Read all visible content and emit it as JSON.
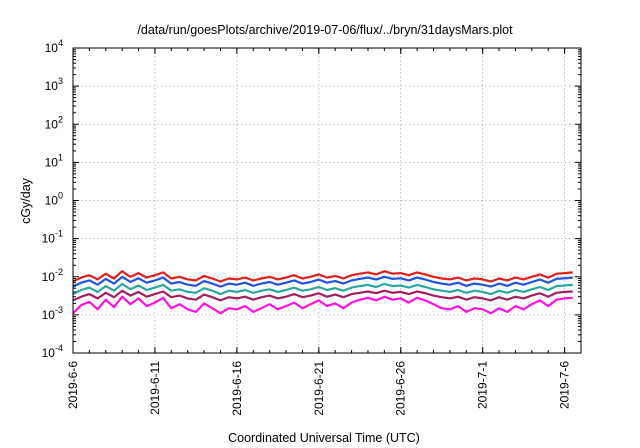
{
  "chart_data": {
    "type": "line",
    "title": "/data/run/goesPlots/archive/2019-07-06/flux/../bryn/31daysMars.plot",
    "xlabel": "Coordinated Universal Time (UTC)",
    "ylabel": "cGy/day",
    "y_scale": "log",
    "ylim": [
      0.0001,
      10000
    ],
    "xlim": [
      "2019-06-06",
      "2019-07-07"
    ],
    "y_ticks": [
      {
        "base": "10",
        "exp": "-4"
      },
      {
        "base": "10",
        "exp": "-3"
      },
      {
        "base": "10",
        "exp": "-2"
      },
      {
        "base": "10",
        "exp": "-1"
      },
      {
        "base": "10",
        "exp": "0"
      },
      {
        "base": "10",
        "exp": "1"
      },
      {
        "base": "10",
        "exp": "2"
      },
      {
        "base": "10",
        "exp": "3"
      },
      {
        "base": "10",
        "exp": "4"
      }
    ],
    "x_ticks": [
      "2019-6-6",
      "2019-6-11",
      "2019-6-16",
      "2019-6-21",
      "2019-6-26",
      "2019-7-1",
      "2019-7-6"
    ],
    "grid": true,
    "legend": "none",
    "series": [
      {
        "color": "#e0201e",
        "start": "2019-06-06",
        "step_days": 0.5,
        "values": [
          0.0075,
          0.0095,
          0.011,
          0.0085,
          0.012,
          0.009,
          0.014,
          0.01,
          0.0125,
          0.0095,
          0.011,
          0.013,
          0.009,
          0.01,
          0.0085,
          0.008,
          0.0105,
          0.009,
          0.0075,
          0.009,
          0.0085,
          0.0095,
          0.008,
          0.009,
          0.01,
          0.0085,
          0.0095,
          0.011,
          0.009,
          0.01,
          0.0115,
          0.0095,
          0.0105,
          0.009,
          0.011,
          0.012,
          0.013,
          0.0115,
          0.014,
          0.012,
          0.0125,
          0.011,
          0.013,
          0.0115,
          0.01,
          0.009,
          0.0085,
          0.0095,
          0.008,
          0.009,
          0.0085,
          0.0075,
          0.009,
          0.008,
          0.0095,
          0.0085,
          0.01,
          0.0115,
          0.0095,
          0.012,
          0.0125,
          0.013
        ]
      },
      {
        "color": "#1f55e0",
        "start": "2019-06-06",
        "step_days": 0.5,
        "values": [
          0.0055,
          0.007,
          0.008,
          0.0062,
          0.0088,
          0.0066,
          0.01,
          0.0073,
          0.0091,
          0.007,
          0.008,
          0.0095,
          0.0066,
          0.0073,
          0.0062,
          0.0058,
          0.0077,
          0.0066,
          0.0055,
          0.0066,
          0.0062,
          0.007,
          0.0058,
          0.0066,
          0.0073,
          0.0062,
          0.007,
          0.008,
          0.0066,
          0.0073,
          0.0084,
          0.007,
          0.0077,
          0.0066,
          0.008,
          0.0088,
          0.0095,
          0.0084,
          0.01,
          0.0088,
          0.0091,
          0.008,
          0.0095,
          0.0084,
          0.0073,
          0.0066,
          0.0062,
          0.007,
          0.0058,
          0.0066,
          0.0062,
          0.0055,
          0.0066,
          0.0058,
          0.007,
          0.0062,
          0.0073,
          0.0084,
          0.007,
          0.0088,
          0.0091,
          0.0095
        ]
      },
      {
        "color": "#2aa8a0",
        "start": "2019-06-06",
        "step_days": 0.5,
        "values": [
          0.0035,
          0.0045,
          0.0052,
          0.004,
          0.0057,
          0.0043,
          0.0065,
          0.0047,
          0.0059,
          0.0045,
          0.0052,
          0.0061,
          0.0043,
          0.0047,
          0.004,
          0.0038,
          0.005,
          0.0043,
          0.0035,
          0.0043,
          0.004,
          0.0045,
          0.0038,
          0.0043,
          0.0047,
          0.004,
          0.0045,
          0.0052,
          0.0043,
          0.0047,
          0.0054,
          0.0045,
          0.005,
          0.0043,
          0.0052,
          0.0057,
          0.0061,
          0.0054,
          0.0065,
          0.0057,
          0.0059,
          0.0052,
          0.0061,
          0.0054,
          0.0047,
          0.0043,
          0.004,
          0.0045,
          0.0038,
          0.0043,
          0.004,
          0.0035,
          0.0043,
          0.0038,
          0.0045,
          0.004,
          0.0047,
          0.0054,
          0.0045,
          0.0057,
          0.0059,
          0.0061
        ]
      },
      {
        "color": "#a02060",
        "start": "2019-06-06",
        "step_days": 0.5,
        "values": [
          0.0024,
          0.003,
          0.0035,
          0.0027,
          0.0038,
          0.0029,
          0.0043,
          0.0032,
          0.004,
          0.003,
          0.0035,
          0.0041,
          0.0029,
          0.0032,
          0.0027,
          0.0025,
          0.0034,
          0.0029,
          0.0024,
          0.0029,
          0.0027,
          0.003,
          0.0025,
          0.0029,
          0.0032,
          0.0027,
          0.003,
          0.0035,
          0.0029,
          0.0032,
          0.0037,
          0.003,
          0.0034,
          0.0029,
          0.0035,
          0.0038,
          0.0041,
          0.0037,
          0.0043,
          0.0038,
          0.004,
          0.0035,
          0.0041,
          0.0037,
          0.0032,
          0.0029,
          0.0027,
          0.003,
          0.0025,
          0.0029,
          0.0027,
          0.0024,
          0.0029,
          0.0025,
          0.003,
          0.0027,
          0.0032,
          0.0037,
          0.003,
          0.0038,
          0.004,
          0.0041
        ]
      },
      {
        "color": "#ff10e0",
        "start": "2019-06-06",
        "step_days": 0.5,
        "values": [
          0.0011,
          0.0018,
          0.0022,
          0.0014,
          0.0025,
          0.0016,
          0.003,
          0.0019,
          0.0027,
          0.0017,
          0.0021,
          0.0028,
          0.0015,
          0.0019,
          0.0014,
          0.0012,
          0.002,
          0.0015,
          0.0011,
          0.0015,
          0.0014,
          0.0017,
          0.0012,
          0.0015,
          0.0019,
          0.0014,
          0.0017,
          0.0021,
          0.0015,
          0.0019,
          0.0024,
          0.0017,
          0.002,
          0.0015,
          0.0021,
          0.0025,
          0.0028,
          0.0024,
          0.003,
          0.0025,
          0.0027,
          0.0021,
          0.0028,
          0.0024,
          0.0019,
          0.0015,
          0.0014,
          0.0017,
          0.0012,
          0.0015,
          0.0014,
          0.0011,
          0.0015,
          0.0012,
          0.0017,
          0.0014,
          0.0019,
          0.0024,
          0.0017,
          0.0025,
          0.0027,
          0.0028
        ]
      }
    ]
  }
}
